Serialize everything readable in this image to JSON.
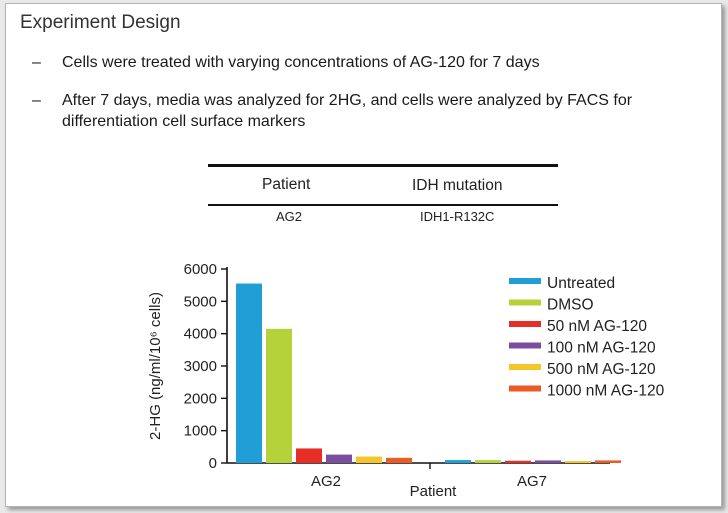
{
  "heading": "Experiment Design",
  "bullets": [
    {
      "dash": "–",
      "lines": [
        "Cells were treated with varying concentrations of AG-120 for 7 days"
      ]
    },
    {
      "dash": "–",
      "lines": [
        "After 7 days, media was analyzed for 2HG, and cells were analyzed by FACS for",
        "differentiation cell surface markers"
      ]
    }
  ],
  "patient_table": {
    "headers": [
      "Patient",
      "IDH mutation"
    ],
    "rows": [
      [
        "AG2",
        "IDH1-R132C"
      ]
    ]
  },
  "chart_data": {
    "type": "bar",
    "title": "",
    "xlabel": "Patient",
    "ylabel": "2-HG (ng/ml/10⁶ cells)",
    "ylim": [
      0,
      6000
    ],
    "yticks": [
      0,
      1000,
      2000,
      3000,
      4000,
      5000,
      6000
    ],
    "categories": [
      "AG2",
      "AG7"
    ],
    "series": [
      {
        "name": "Untreated",
        "color": "#1f9fd6",
        "values": [
          5550,
          90
        ]
      },
      {
        "name": "DMSO",
        "color": "#b6d23a",
        "values": [
          4150,
          90
        ]
      },
      {
        "name": "50 nM AG-120",
        "color": "#e62f26",
        "values": [
          450,
          70
        ]
      },
      {
        "name": "100 nM AG-120",
        "color": "#7b4d9f",
        "values": [
          260,
          80
        ]
      },
      {
        "name": "500 nM AG-120",
        "color": "#f6c52a",
        "values": [
          200,
          60
        ]
      },
      {
        "name": "1000 nM AG-120",
        "color": "#ea5b25",
        "values": [
          160,
          80
        ]
      }
    ],
    "legend_position": "top-right"
  }
}
